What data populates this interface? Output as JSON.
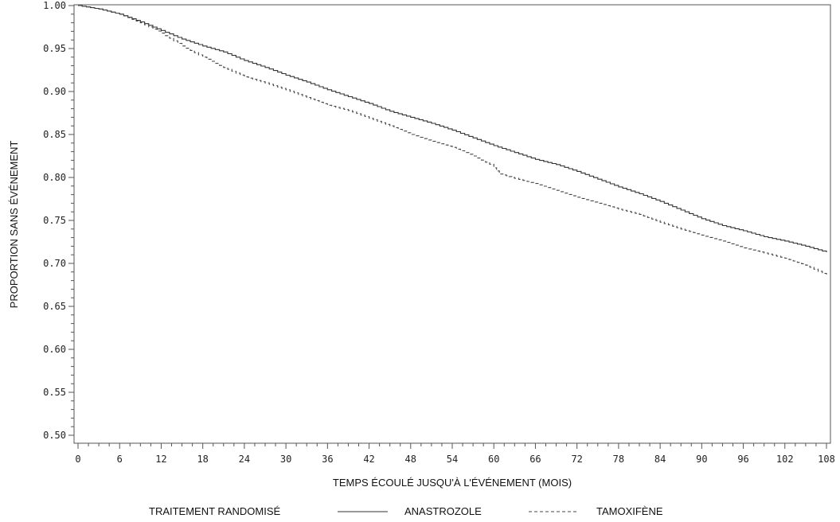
{
  "chart_data": {
    "type": "line",
    "title": "",
    "xlabel": "TEMPS ÉCOULÉ JUSQU'À L'ÉVÉNEMENT (MOIS)",
    "ylabel": "PROPORTION SANS ÉVÉNEMENT",
    "xlim": [
      0,
      108
    ],
    "ylim": [
      0.5,
      1.0
    ],
    "xticks": [
      "0",
      "6",
      "12",
      "18",
      "24",
      "30",
      "36",
      "42",
      "48",
      "54",
      "60",
      "66",
      "72",
      "78",
      "84",
      "90",
      "96",
      "102",
      "108"
    ],
    "yticks": [
      "0.50",
      "0.55",
      "0.60",
      "0.65",
      "0.70",
      "0.75",
      "0.80",
      "0.85",
      "0.90",
      "0.95",
      "1.00"
    ],
    "grid": false,
    "legend": {
      "title": "TRAITEMENT RANDOMISÉ",
      "placement": "bottom"
    },
    "series": [
      {
        "name": "ANASTROZOLE",
        "style": "solid",
        "color": "#333333",
        "x": [
          0,
          3,
          6,
          9,
          12,
          15,
          18,
          21,
          24,
          27,
          30,
          33,
          36,
          39,
          42,
          45,
          48,
          51,
          54,
          57,
          60,
          63,
          66,
          69,
          72,
          75,
          78,
          81,
          84,
          87,
          90,
          93,
          96,
          99,
          102,
          105,
          108
        ],
        "y": [
          1.0,
          0.996,
          0.99,
          0.981,
          0.971,
          0.961,
          0.953,
          0.946,
          0.936,
          0.928,
          0.919,
          0.911,
          0.902,
          0.894,
          0.886,
          0.877,
          0.87,
          0.863,
          0.855,
          0.846,
          0.837,
          0.829,
          0.821,
          0.815,
          0.807,
          0.798,
          0.789,
          0.781,
          0.772,
          0.762,
          0.752,
          0.744,
          0.738,
          0.731,
          0.726,
          0.72,
          0.713
        ]
      },
      {
        "name": "TAMOXIFÈNE",
        "style": "dashed",
        "color": "#444444",
        "x": [
          0,
          3,
          6,
          9,
          12,
          15,
          18,
          21,
          24,
          27,
          30,
          33,
          36,
          39,
          42,
          45,
          48,
          51,
          54,
          57,
          60,
          61,
          63,
          66,
          69,
          72,
          75,
          78,
          81,
          84,
          87,
          90,
          93,
          96,
          99,
          102,
          105,
          108
        ],
        "y": [
          1.0,
          0.996,
          0.99,
          0.98,
          0.968,
          0.953,
          0.94,
          0.928,
          0.917,
          0.91,
          0.902,
          0.893,
          0.884,
          0.878,
          0.869,
          0.86,
          0.85,
          0.842,
          0.835,
          0.825,
          0.813,
          0.804,
          0.799,
          0.793,
          0.785,
          0.777,
          0.77,
          0.763,
          0.757,
          0.748,
          0.74,
          0.733,
          0.726,
          0.718,
          0.712,
          0.706,
          0.698,
          0.686
        ]
      }
    ]
  }
}
